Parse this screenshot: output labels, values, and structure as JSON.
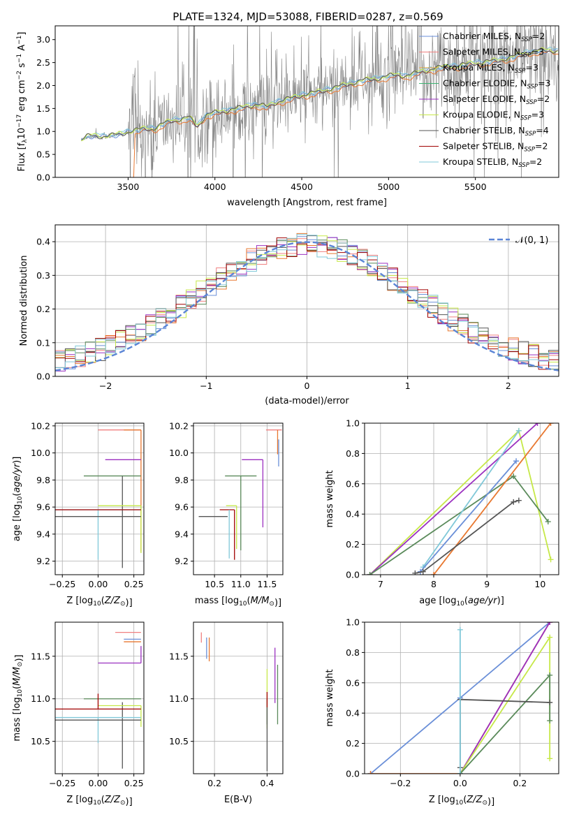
{
  "figure": {
    "title": "PLATE=1324, MJD=53088, FIBERID=0287, z=0.569"
  },
  "colors": {
    "chabrier_miles": "#6a8fd8",
    "salpeter_miles": "#f08080",
    "kroupa_miles": "#e8a23a",
    "chabrier_elodie": "#3cb371",
    "salpeter_elodie": "#9b30c0",
    "kroupa_elodie": "#c6e848",
    "chabrier_stelib": "#555555",
    "salpeter_stelib": "#a00000",
    "kroupa_stelib": "#80c8d8",
    "data_gray": "#808080",
    "model_orange": "#e87830",
    "normal_curve": "#5b85d6",
    "dark_green": "#5a8a5a"
  },
  "chart_data": [
    {
      "id": "spectrum",
      "type": "line",
      "title": "PLATE=1324, MJD=53088, FIBERID=0287, z=0.569",
      "xlabel": "wavelength [Angstrom, rest frame]",
      "ylabel": "Flux [f",
      "ylabel_unit": "10",
      "xlim": [
        3080,
        5980
      ],
      "ylim": [
        0,
        3.3
      ],
      "xticks": [
        "3500",
        "4000",
        "4500",
        "5000",
        "5500"
      ],
      "yticks": [
        "0.0",
        "0.5",
        "1.0",
        "1.5",
        "2.0",
        "2.5",
        "3.0"
      ],
      "legend_position": "top-right",
      "legend": [
        {
          "label": "Chabrier MILES, N",
          "n": "2",
          "color_key": "chabrier_miles"
        },
        {
          "label": "Salpeter MILES, N",
          "n": "3",
          "color_key": "salpeter_miles"
        },
        {
          "label": "Kroupa MILES, N",
          "n": "3",
          "color_key": "kroupa_miles"
        },
        {
          "label": "Chabrier ELODIE, N",
          "n": "3",
          "color_key": "chabrier_elodie"
        },
        {
          "label": "Salpeter ELODIE, N",
          "n": "2",
          "color_key": "salpeter_elodie"
        },
        {
          "label": "Kroupa ELODIE, N",
          "n": "3",
          "color_key": "kroupa_elodie"
        },
        {
          "label": "Chabrier STELIB, N",
          "n": "4",
          "color_key": "chabrier_stelib"
        },
        {
          "label": "Salpeter STELIB, N",
          "n": "2",
          "color_key": "salpeter_stelib"
        },
        {
          "label": "Kroupa STELIB, N",
          "n": "2",
          "color_key": "kroupa_stelib"
        }
      ],
      "model_continuum": {
        "x": [
          3230,
          3260,
          3300,
          3350,
          3400,
          3450,
          3500,
          3550,
          3600,
          3650,
          3700,
          3750,
          3800,
          3850,
          3900,
          3950,
          4000,
          4050,
          4100,
          4150,
          4200,
          4250,
          4300,
          4350,
          4400,
          4450,
          4500,
          4550,
          4600,
          4650,
          4700,
          4750,
          4800,
          4850,
          4900,
          4950,
          5000,
          5050,
          5100,
          5150,
          5200,
          5250,
          5300,
          5350,
          5400,
          5450,
          5500,
          5550,
          5600,
          5650,
          5700,
          5750,
          5800,
          5850
        ],
        "y": [
          0.8,
          0.88,
          0.9,
          0.88,
          0.9,
          0.93,
          0.98,
          1.02,
          1.05,
          1.05,
          1.15,
          1.22,
          1.25,
          1.3,
          1.1,
          1.35,
          1.4,
          1.42,
          1.48,
          1.5,
          1.55,
          1.58,
          1.52,
          1.62,
          1.68,
          1.72,
          1.78,
          1.82,
          1.85,
          1.9,
          1.95,
          2.0,
          2.05,
          2.1,
          2.12,
          2.15,
          2.2,
          2.22,
          2.2,
          2.25,
          2.3,
          2.35,
          2.38,
          2.4,
          2.42,
          2.45,
          2.48,
          2.5,
          2.52,
          2.55,
          2.6,
          2.65,
          2.7,
          2.75
        ]
      }
    },
    {
      "id": "residual-histogram",
      "type": "histogram",
      "xlabel": "(data-model)/error",
      "ylabel": "Normed distribution",
      "xlim": [
        -2.5,
        2.5
      ],
      "ylim": [
        0,
        0.45
      ],
      "xticks": [
        "−2",
        "−1",
        "0",
        "1",
        "2"
      ],
      "yticks": [
        "0.0",
        "0.1",
        "0.2",
        "0.3",
        "0.4"
      ],
      "grid": true,
      "legend_position": "top-right",
      "legend": [
        {
          "label": "𝒩(0, 1)",
          "color_key": "normal_curve"
        }
      ],
      "curve": {
        "name": "𝒩(0, 1)",
        "mean": 0,
        "sigma": 1
      }
    },
    {
      "id": "age-vs-metallicity",
      "type": "errorbar",
      "xlabel": "Z [log",
      "ylabel": "age  [log",
      "xlim": [
        -0.3,
        0.32
      ],
      "ylim": [
        9.1,
        10.22
      ],
      "xticks": [
        "−0.25",
        "0.00",
        "0.25"
      ],
      "yticks": [
        "9.2",
        "9.4",
        "9.6",
        "9.8",
        "10.0",
        "10.2"
      ],
      "grid": true,
      "points": [
        {
          "x": 0.3,
          "y": 10.17,
          "xerr": [
            0.3,
            0.0
          ],
          "yerr": [
            0.0,
            0.0
          ],
          "color_key": "salpeter_miles"
        },
        {
          "x": 0.3,
          "y": 10.17,
          "xerr": [
            0.12,
            0.0
          ],
          "yerr": [
            0.9,
            0.0
          ],
          "color_key": "model_orange"
        },
        {
          "x": 0.3,
          "y": 9.95,
          "xerr": [
            0.25,
            0.0
          ],
          "yerr": [
            0.0,
            0.0
          ],
          "color_key": "salpeter_elodie"
        },
        {
          "x": 0.3,
          "y": 9.83,
          "xerr": [
            0.4,
            0.0
          ],
          "yerr": [
            0.0,
            0.0
          ],
          "color_key": "dark_green"
        },
        {
          "x": 0.17,
          "y": 9.83,
          "xerr": [
            0.0,
            0.0
          ],
          "yerr": [
            0.68,
            0.0
          ],
          "color_key": "chabrier_stelib"
        },
        {
          "x": 0.3,
          "y": 9.61,
          "xerr": [
            0.3,
            0.0
          ],
          "yerr": [
            0.35,
            0.0
          ],
          "color_key": "kroupa_elodie"
        },
        {
          "x": 0.0,
          "y": 9.58,
          "xerr": [
            0.3,
            0.3
          ],
          "yerr": [
            0.37,
            0.0
          ],
          "color_key": "kroupa_stelib"
        },
        {
          "x": 0.0,
          "y": 9.58,
          "xerr": [
            0.3,
            0.3
          ],
          "yerr": [
            0.0,
            0.0
          ],
          "color_key": "salpeter_stelib"
        },
        {
          "x": 0.0,
          "y": 9.53,
          "xerr": [
            0.3,
            0.3
          ],
          "yerr": [
            0.0,
            0.0
          ],
          "color_key": "chabrier_stelib"
        }
      ]
    },
    {
      "id": "age-vs-mass",
      "type": "errorbar",
      "xlabel": "mass [log",
      "xlim": [
        10.1,
        11.8
      ],
      "ylim": [
        9.1,
        10.22
      ],
      "xticks": [
        "10.5",
        "11.0",
        "11.5"
      ],
      "yticks": [
        "9.2",
        "9.4",
        "9.6",
        "9.8",
        "10.0",
        "10.2"
      ],
      "grid": true,
      "points": [
        {
          "x": 11.78,
          "y": 10.17,
          "xerr": [
            0.3,
            0.0
          ],
          "yerr": [
            0.0,
            0.0
          ],
          "color_key": "salpeter_miles"
        },
        {
          "x": 11.7,
          "y": 10.17,
          "xerr": [
            0.0,
            0.0
          ],
          "yerr": [
            0.18,
            0.0
          ],
          "color_key": "model_orange"
        },
        {
          "x": 11.72,
          "y": 10.1,
          "xerr": [
            0.0,
            0.0
          ],
          "yerr": [
            0.2,
            0.0
          ],
          "color_key": "chabrier_miles"
        },
        {
          "x": 11.42,
          "y": 9.95,
          "xerr": [
            0.4,
            0.0
          ],
          "yerr": [
            0.5,
            0.0
          ],
          "color_key": "salpeter_elodie"
        },
        {
          "x": 11.0,
          "y": 9.83,
          "xerr": [
            0.3,
            0.3
          ],
          "yerr": [
            0.55,
            0.0
          ],
          "color_key": "dark_green"
        },
        {
          "x": 10.92,
          "y": 9.83,
          "xerr": [
            0.0,
            0.0
          ],
          "yerr": [
            0.0,
            0.0
          ],
          "color_key": "chabrier_stelib"
        },
        {
          "x": 10.92,
          "y": 9.61,
          "xerr": [
            0.2,
            0.0
          ],
          "yerr": [
            0.32,
            0.0
          ],
          "color_key": "kroupa_elodie"
        },
        {
          "x": 10.88,
          "y": 9.58,
          "xerr": [
            0.28,
            0.0
          ],
          "yerr": [
            0.37,
            0.0
          ],
          "color_key": "salpeter_stelib"
        },
        {
          "x": 10.78,
          "y": 9.58,
          "xerr": [
            0.0,
            0.0
          ],
          "yerr": [
            0.36,
            0.0
          ],
          "color_key": "kroupa_stelib"
        },
        {
          "x": 10.75,
          "y": 9.53,
          "xerr": [
            0.55,
            0.0
          ],
          "yerr": [
            0.0,
            0.0
          ],
          "color_key": "chabrier_stelib"
        }
      ]
    },
    {
      "id": "cumulative-mass-weight-age",
      "type": "line",
      "xlabel": "age  [log",
      "ylabel": "mass weight",
      "xlim": [
        6.7,
        10.35
      ],
      "ylim": [
        0,
        1
      ],
      "xticks": [
        "7",
        "8",
        "9",
        "10"
      ],
      "yticks": [
        "0.0",
        "0.2",
        "0.4",
        "0.6",
        "0.8",
        "1.0"
      ],
      "grid": true,
      "series": [
        {
          "color_key": "kroupa_elodie",
          "x": [
            6.8,
            9.6,
            10.2
          ],
          "y": [
            0.0,
            0.95,
            0.1
          ]
        },
        {
          "color_key": "salpeter_elodie",
          "x": [
            6.8,
            9.95
          ],
          "y": [
            0.0,
            1.0
          ]
        },
        {
          "color_key": "dark_green",
          "x": [
            6.8,
            9.5,
            10.15
          ],
          "y": [
            0.0,
            0.65,
            0.35
          ]
        },
        {
          "color_key": "kroupa_stelib",
          "x": [
            7.8,
            9.6
          ],
          "y": [
            0.05,
            0.95
          ]
        },
        {
          "color_key": "chabrier_miles",
          "x": [
            7.75,
            9.55
          ],
          "y": [
            0.02,
            0.75
          ]
        },
        {
          "color_key": "model_orange",
          "x": [
            8.0,
            10.2
          ],
          "y": [
            0.0,
            1.0
          ]
        },
        {
          "color_key": "chabrier_stelib",
          "x": [
            7.65,
            7.8,
            9.5,
            9.6
          ],
          "y": [
            0.01,
            0.02,
            0.48,
            0.49
          ]
        }
      ]
    },
    {
      "id": "mass-vs-metallicity",
      "type": "errorbar",
      "xlabel": "Z [log",
      "ylabel": "mass [log",
      "xlim": [
        -0.3,
        0.32
      ],
      "ylim": [
        10.12,
        11.9
      ],
      "xticks": [
        "−0.25",
        "0.00",
        "0.25"
      ],
      "yticks": [
        "10.5",
        "11.0",
        "11.5"
      ],
      "grid": true,
      "points": [
        {
          "x": 0.3,
          "y": 11.78,
          "xerr": [
            0.18,
            0.0
          ],
          "yerr": [
            0.0,
            0.0
          ],
          "color_key": "salpeter_miles"
        },
        {
          "x": 0.3,
          "y": 11.7,
          "xerr": [
            0.12,
            0.0
          ],
          "yerr": [
            0.0,
            0.0
          ],
          "color_key": "chabrier_miles"
        },
        {
          "x": 0.3,
          "y": 11.67,
          "xerr": [
            0.12,
            0.0
          ],
          "yerr": [
            0.0,
            0.0
          ],
          "color_key": "model_orange"
        },
        {
          "x": 0.3,
          "y": 11.42,
          "xerr": [
            0.3,
            0.0
          ],
          "yerr": [
            0.0,
            0.2
          ],
          "color_key": "salpeter_elodie"
        },
        {
          "x": 0.3,
          "y": 11.0,
          "xerr": [
            0.4,
            0.0
          ],
          "yerr": [
            0.0,
            0.0
          ],
          "color_key": "dark_green"
        },
        {
          "x": 0.17,
          "y": 10.96,
          "xerr": [
            0.0,
            0.0
          ],
          "yerr": [
            0.78,
            0.0
          ],
          "color_key": "chabrier_stelib"
        },
        {
          "x": 0.3,
          "y": 10.92,
          "xerr": [
            0.3,
            0.0
          ],
          "yerr": [
            0.25,
            0.0
          ],
          "color_key": "kroupa_elodie"
        },
        {
          "x": 0.0,
          "y": 10.88,
          "xerr": [
            0.3,
            0.3
          ],
          "yerr": [
            0.0,
            0.18
          ],
          "color_key": "salpeter_stelib"
        },
        {
          "x": 0.0,
          "y": 10.78,
          "xerr": [
            0.3,
            0.3
          ],
          "yerr": [
            0.3,
            0.0
          ],
          "color_key": "kroupa_stelib"
        },
        {
          "x": 0.0,
          "y": 10.75,
          "xerr": [
            0.3,
            0.3
          ],
          "yerr": [
            0.0,
            0.0
          ],
          "color_key": "chabrier_stelib"
        }
      ]
    },
    {
      "id": "mass-vs-extinction",
      "type": "errorbar",
      "xlabel": "E(B-V)",
      "xlim": [
        0.12,
        0.46
      ],
      "ylim": [
        10.12,
        11.9
      ],
      "xticks": [
        "0.2",
        "0.4"
      ],
      "yticks": [
        "10.5",
        "11.0",
        "11.5"
      ],
      "grid": true,
      "points": [
        {
          "x": 0.15,
          "y": 11.78,
          "yerr": [
            0.12,
            0.0
          ],
          "color_key": "salpeter_miles"
        },
        {
          "x": 0.17,
          "y": 11.62,
          "yerr": [
            0.15,
            0.1
          ],
          "color_key": "chabrier_miles"
        },
        {
          "x": 0.18,
          "y": 11.62,
          "yerr": [
            0.18,
            0.1
          ],
          "color_key": "model_orange"
        },
        {
          "x": 0.4,
          "y": 11.0,
          "yerr": [
            0.35,
            0.35
          ],
          "color_key": "kroupa_elodie"
        },
        {
          "x": 0.4,
          "y": 11.0,
          "yerr": [
            0.3,
            0.0
          ],
          "color_key": "dark_green"
        },
        {
          "x": 0.4,
          "y": 10.9,
          "yerr": [
            0.75,
            0.0
          ],
          "color_key": "chabrier_stelib"
        },
        {
          "x": 0.4,
          "y": 11.0,
          "yerr": [
            0.1,
            0.08
          ],
          "color_key": "salpeter_stelib"
        },
        {
          "x": 0.43,
          "y": 11.25,
          "yerr": [
            0.3,
            0.35
          ],
          "color_key": "salpeter_elodie"
        },
        {
          "x": 0.44,
          "y": 11.05,
          "yerr": [
            0.35,
            0.35
          ],
          "color_key": "dark_green"
        }
      ]
    },
    {
      "id": "cumulative-mass-weight-metallicity",
      "type": "line",
      "xlabel": "Z [log",
      "ylabel": "mass weight",
      "xlim": [
        -0.32,
        0.33
      ],
      "ylim": [
        0,
        1
      ],
      "xticks": [
        "−0.2",
        "0.0",
        "0.2"
      ],
      "yticks": [
        "0.0",
        "0.2",
        "0.4",
        "0.6",
        "0.8",
        "1.0"
      ],
      "grid": true,
      "series": [
        {
          "color_key": "chabrier_miles",
          "x": [
            -0.3,
            0.0,
            0.3
          ],
          "y": [
            0.0,
            0.5,
            1.0
          ]
        },
        {
          "color_key": "model_orange",
          "x": [
            -0.3,
            0.0,
            0.3
          ],
          "y": [
            0.0,
            0.0,
            1.0
          ]
        },
        {
          "color_key": "salpeter_elodie",
          "x": [
            0.0,
            0.3
          ],
          "y": [
            0.0,
            1.0
          ]
        },
        {
          "color_key": "kroupa_elodie",
          "x": [
            0.0,
            0.3,
            0.3
          ],
          "y": [
            0.0,
            0.9,
            0.1
          ]
        },
        {
          "color_key": "dark_green",
          "x": [
            0.0,
            0.3,
            0.3
          ],
          "y": [
            0.0,
            0.65,
            0.35
          ]
        },
        {
          "color_key": "chabrier_stelib",
          "x": [
            0.0,
            0.0,
            0.3
          ],
          "y": [
            0.04,
            0.49,
            0.47
          ]
        },
        {
          "color_key": "kroupa_stelib",
          "x": [
            0.0,
            0.0
          ],
          "y": [
            0.0,
            0.95
          ]
        }
      ]
    }
  ]
}
